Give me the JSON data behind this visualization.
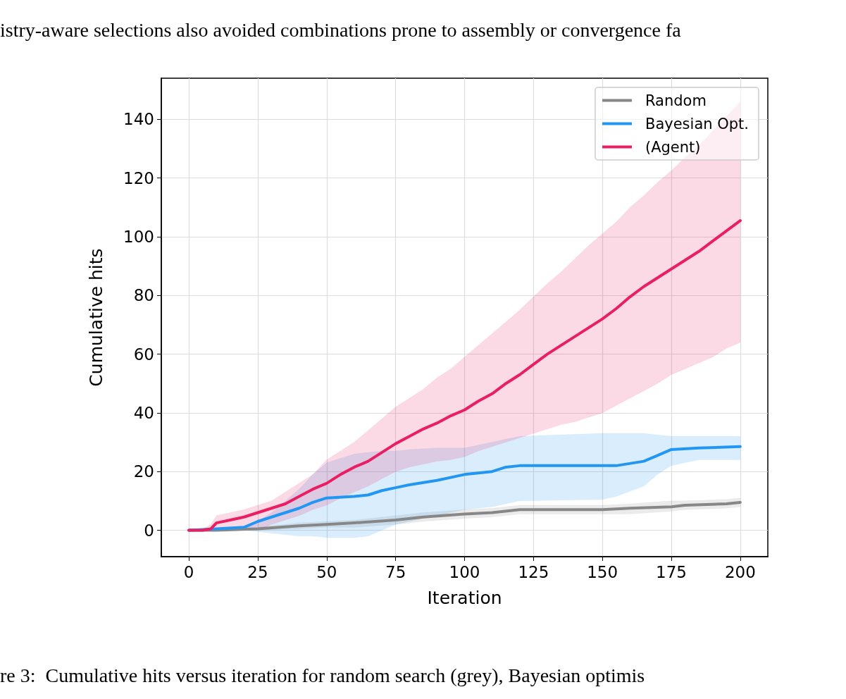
{
  "chart_data": {
    "type": "line",
    "xlabel": "Iteration",
    "ylabel": "Cumulative hits",
    "xlim": [
      -10,
      210
    ],
    "ylim": [
      -9,
      154
    ],
    "xticks": [
      0,
      25,
      50,
      75,
      100,
      125,
      150,
      175,
      200
    ],
    "yticks": [
      0,
      20,
      40,
      60,
      80,
      100,
      120,
      140
    ],
    "grid": true,
    "legend": "top right",
    "marker": "none",
    "line_style": "solid",
    "annotations": [
      "istry-aware selections also avoided combinations prone to assembly or convergence fa",
      "re 3:  Cumulative hits versus iteration for random search (grey), Bayesian optimis"
    ],
    "series": [
      {
        "name": "Random",
        "color": "#878787",
        "x": [
          0,
          10,
          25,
          40,
          50,
          60,
          75,
          85,
          100,
          110,
          120,
          150,
          160,
          175,
          180,
          195,
          200
        ],
        "values": [
          0,
          0,
          0.5,
          1.5,
          2,
          2.5,
          3.5,
          4.5,
          5.5,
          6,
          7,
          7,
          7.5,
          8,
          8.5,
          9,
          9.5
        ],
        "lower": [
          0,
          0,
          0,
          0.5,
          1,
          1,
          2,
          3,
          4,
          4.5,
          5.5,
          5.5,
          5.5,
          6.5,
          7,
          7.5,
          8
        ],
        "upper": [
          0,
          0.5,
          1,
          2.5,
          3,
          3.5,
          5,
          6,
          7,
          7.5,
          8.5,
          8.5,
          9,
          10,
          10,
          10.5,
          11
        ]
      },
      {
        "name": "Bayesian Opt.",
        "color": "#2196f3",
        "x": [
          0,
          10,
          20,
          25,
          30,
          40,
          45,
          50,
          60,
          65,
          70,
          75,
          80,
          90,
          100,
          110,
          115,
          120,
          150,
          155,
          165,
          170,
          175,
          185,
          200
        ],
        "values": [
          0,
          0.5,
          1,
          3,
          4.5,
          7.5,
          9.5,
          11,
          11.5,
          12,
          13.5,
          14.5,
          15.5,
          17,
          19,
          20,
          21.5,
          22,
          22,
          22,
          23.5,
          25.5,
          27.5,
          28,
          28.5
        ],
        "lower": [
          0,
          0,
          0,
          -0.5,
          -1,
          -2,
          -2,
          -2.5,
          -2.5,
          -2,
          0,
          2,
          3,
          5,
          7,
          8,
          9,
          10,
          10.5,
          11.5,
          15,
          19,
          22,
          24,
          24
        ],
        "upper": [
          0,
          0.5,
          1,
          3,
          6,
          14,
          19,
          23,
          26,
          26.5,
          27,
          27,
          27.5,
          28,
          28,
          30,
          31,
          32,
          33,
          33,
          33,
          32.5,
          32,
          32,
          32
        ]
      },
      {
        "name": "(Agent)",
        "color": "#e91e63",
        "x": [
          0,
          5,
          8,
          10,
          15,
          20,
          25,
          30,
          35,
          40,
          45,
          50,
          55,
          60,
          65,
          70,
          75,
          80,
          85,
          90,
          95,
          100,
          105,
          110,
          115,
          120,
          125,
          130,
          135,
          140,
          145,
          150,
          155,
          160,
          165,
          170,
          175,
          180,
          185,
          190,
          195,
          200
        ],
        "values": [
          0,
          0,
          0.5,
          2.5,
          3.5,
          4.5,
          6,
          7.5,
          9,
          11.5,
          14,
          16,
          19,
          21.5,
          23.5,
          26.5,
          29.5,
          32,
          34.5,
          36.5,
          39,
          41,
          44,
          46.5,
          50,
          53,
          56.5,
          60,
          63,
          66,
          69,
          72,
          75.5,
          79.5,
          83,
          86,
          89,
          92,
          95,
          98.5,
          102,
          105.5
        ],
        "lower": [
          0,
          0,
          0,
          0,
          0,
          0,
          0,
          2,
          3.5,
          5,
          7,
          8.5,
          11,
          13,
          15,
          17.5,
          20,
          21.5,
          22.5,
          23.5,
          24,
          25,
          27,
          28.5,
          30,
          31.5,
          33,
          34.5,
          36,
          37,
          38.5,
          40,
          42.5,
          45,
          47.5,
          50,
          53,
          55,
          57,
          59,
          62,
          64
        ],
        "upper": [
          0,
          0.5,
          2,
          5,
          6,
          7,
          8.5,
          10,
          13,
          16,
          19,
          24,
          27,
          30,
          34,
          38,
          42,
          45,
          48,
          52,
          55,
          59,
          63,
          67,
          71,
          75,
          79.5,
          84,
          88,
          92.5,
          97,
          101,
          105,
          110,
          114,
          118.5,
          122.5,
          127,
          131,
          136,
          141,
          146
        ]
      }
    ]
  }
}
